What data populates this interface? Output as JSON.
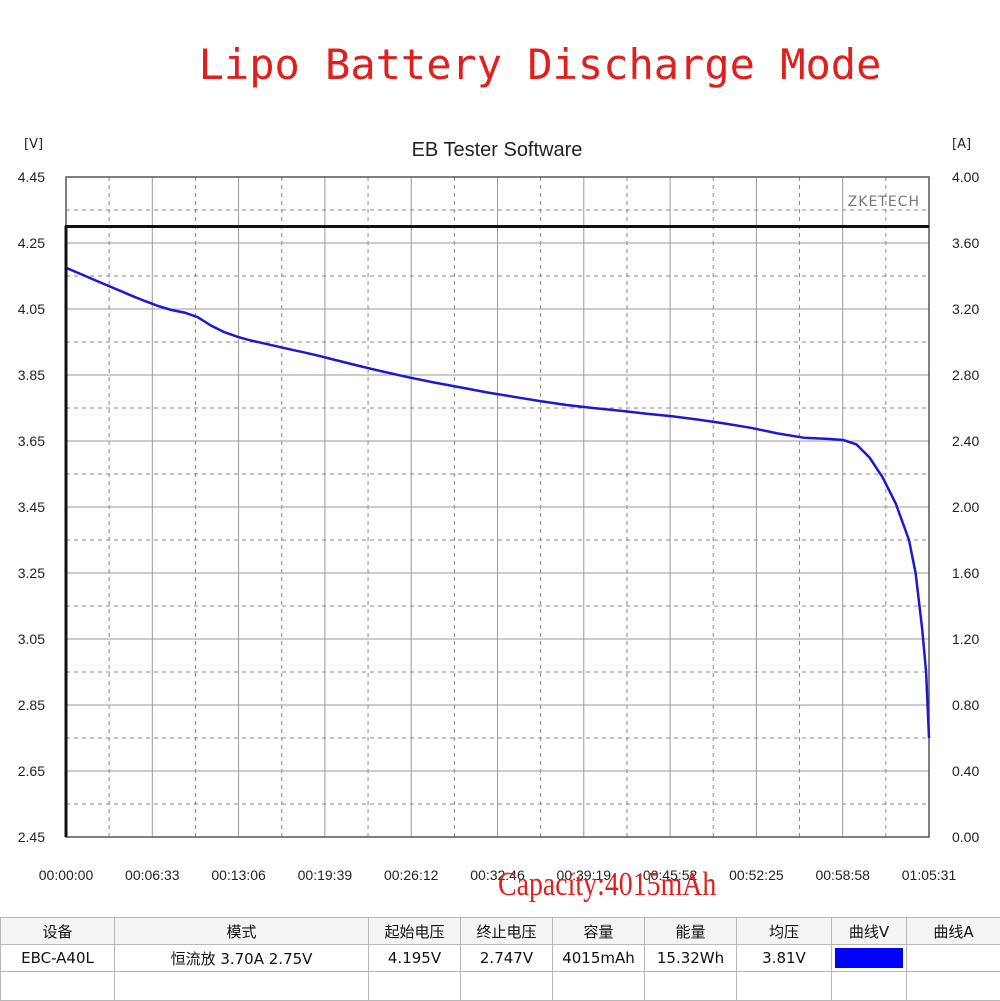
{
  "banner": "Lipo Battery Discharge Mode",
  "capacity_annotation": "Capacity:4015mAh",
  "chart_data": {
    "type": "line",
    "title": "EB Tester Software",
    "watermark": "ZKETECH",
    "left_unit": "[V]",
    "right_unit": "[A]",
    "x_ticks": [
      "00:00:00",
      "00:06:33",
      "00:13:06",
      "00:19:39",
      "00:26:12",
      "00:32:46",
      "00:39:19",
      "00:45:52",
      "00:52:25",
      "00:58:58",
      "01:05:31"
    ],
    "left_ticks": [
      "4.45",
      "4.25",
      "4.05",
      "3.85",
      "3.65",
      "3.45",
      "3.25",
      "3.05",
      "2.85",
      "2.65",
      "2.45"
    ],
    "right_ticks": [
      "4.00",
      "3.60",
      "3.20",
      "2.80",
      "2.40",
      "2.00",
      "1.60",
      "1.20",
      "0.80",
      "0.40",
      "0.00"
    ],
    "left_range": [
      2.45,
      4.45
    ],
    "right_range": [
      0.0,
      4.0
    ],
    "x_range_minutes": [
      0,
      65.52
    ],
    "grid": true,
    "series": [
      {
        "axis": "left",
        "color": "#1a1ad0",
        "points": [
          [
            0,
            4.175
          ],
          [
            1,
            4.158
          ],
          [
            2,
            4.141
          ],
          [
            3,
            4.124
          ],
          [
            4,
            4.107
          ],
          [
            5,
            4.09
          ],
          [
            6,
            4.074
          ],
          [
            7,
            4.059
          ],
          [
            8,
            4.047
          ],
          [
            9,
            4.039
          ],
          [
            10,
            4.025
          ],
          [
            11,
            4.0
          ],
          [
            12,
            3.98
          ],
          [
            13,
            3.966
          ],
          [
            14,
            3.955
          ],
          [
            15,
            3.946
          ],
          [
            16,
            3.937
          ],
          [
            17,
            3.928
          ],
          [
            18,
            3.919
          ],
          [
            19,
            3.91
          ],
          [
            20,
            3.9
          ],
          [
            22,
            3.88
          ],
          [
            24,
            3.861
          ],
          [
            26,
            3.843
          ],
          [
            28,
            3.827
          ],
          [
            30,
            3.812
          ],
          [
            32,
            3.797
          ],
          [
            34,
            3.784
          ],
          [
            36,
            3.771
          ],
          [
            38,
            3.759
          ],
          [
            40,
            3.75
          ],
          [
            42,
            3.742
          ],
          [
            44,
            3.733
          ],
          [
            46,
            3.725
          ],
          [
            48,
            3.715
          ],
          [
            50,
            3.703
          ],
          [
            52,
            3.69
          ],
          [
            54,
            3.673
          ],
          [
            56,
            3.66
          ],
          [
            58,
            3.656
          ],
          [
            59,
            3.653
          ],
          [
            60,
            3.64
          ],
          [
            61,
            3.6
          ],
          [
            62,
            3.54
          ],
          [
            63,
            3.46
          ],
          [
            64,
            3.35
          ],
          [
            64.5,
            3.25
          ],
          [
            65,
            3.08
          ],
          [
            65.3,
            2.95
          ],
          [
            65.52,
            2.75
          ]
        ]
      },
      {
        "axis": "right",
        "color": "#111111",
        "points": [
          [
            0,
            0
          ],
          [
            0,
            3.7
          ],
          [
            65.52,
            3.7
          ]
        ]
      }
    ]
  },
  "table": {
    "headers": [
      "设备",
      "模式",
      "起始电压",
      "终止电压",
      "容量",
      "能量",
      "均压",
      "曲线V",
      "曲线A"
    ],
    "row": {
      "device": "EBC-A40L",
      "mode": "恒流放  3.70A  2.75V",
      "start_voltage": "4.195V",
      "end_voltage": "2.747V",
      "capacity": "4015mAh",
      "energy": "15.32Wh",
      "avg_voltage": "3.81V",
      "curve_v_color": "#0000ff"
    }
  }
}
